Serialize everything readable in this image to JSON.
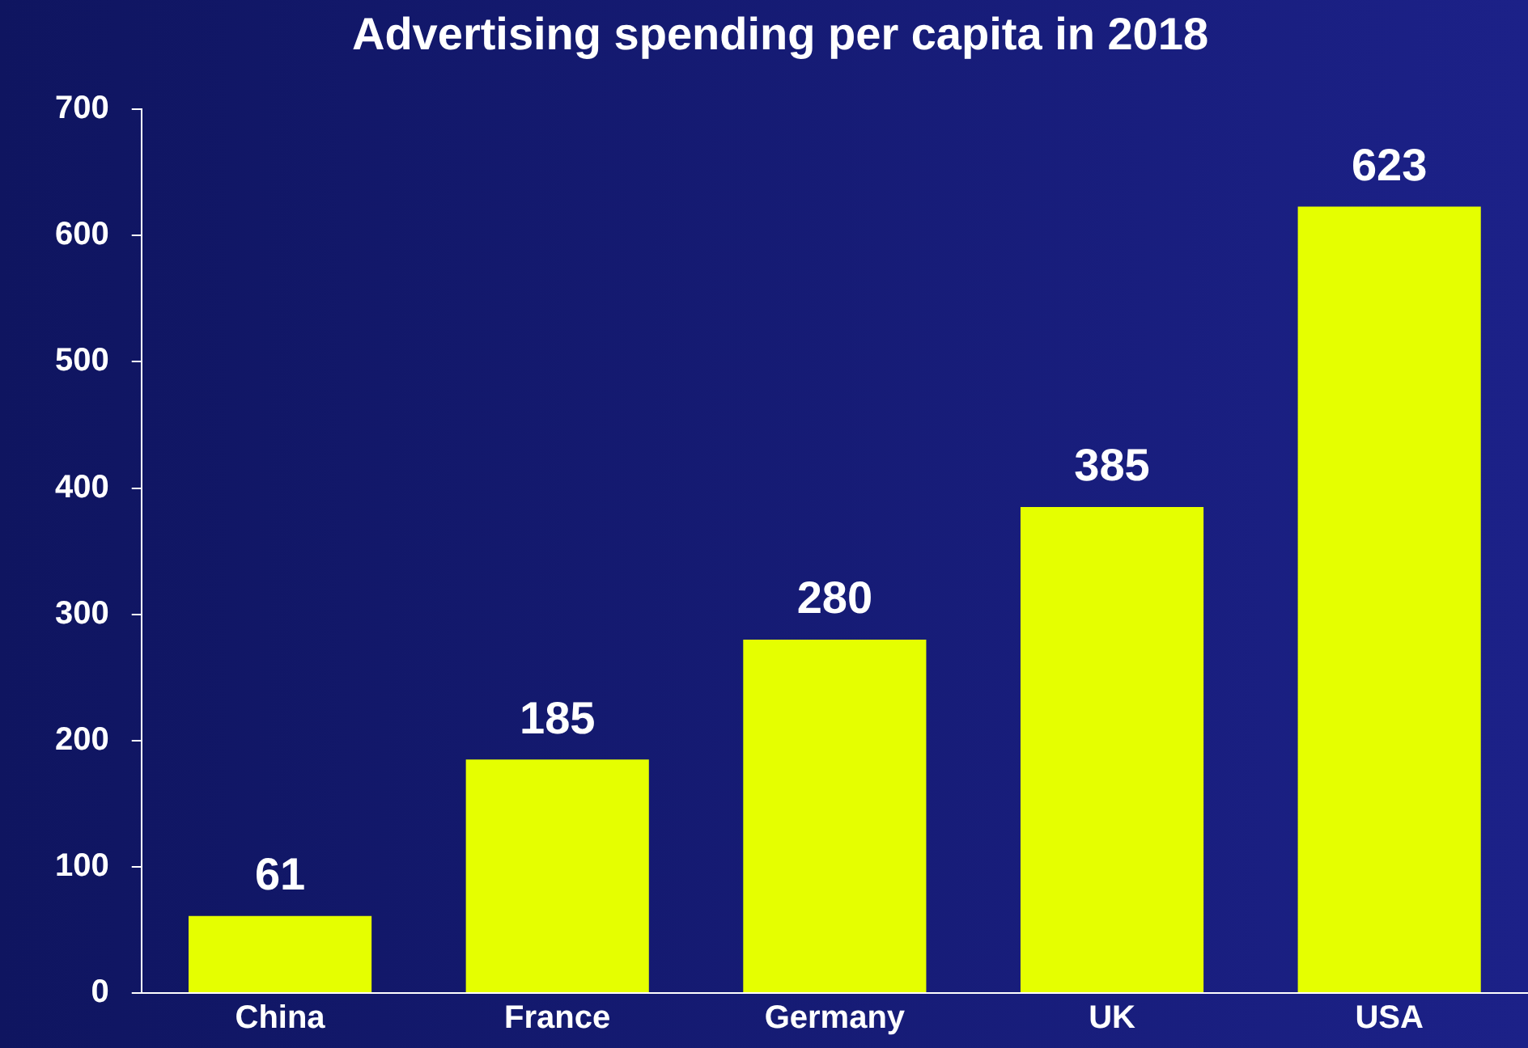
{
  "chart_data": {
    "type": "bar",
    "title": "Advertising spending per capita in 2018",
    "categories": [
      "China",
      "France",
      "Germany",
      "UK",
      "USA"
    ],
    "values": [
      61,
      185,
      280,
      385,
      623
    ],
    "color": "#e5ff00",
    "ylim": [
      0,
      700
    ],
    "yticks": [
      0,
      100,
      200,
      300,
      400,
      500,
      600,
      700
    ],
    "grid": false,
    "legend": false,
    "data_labels": true
  }
}
